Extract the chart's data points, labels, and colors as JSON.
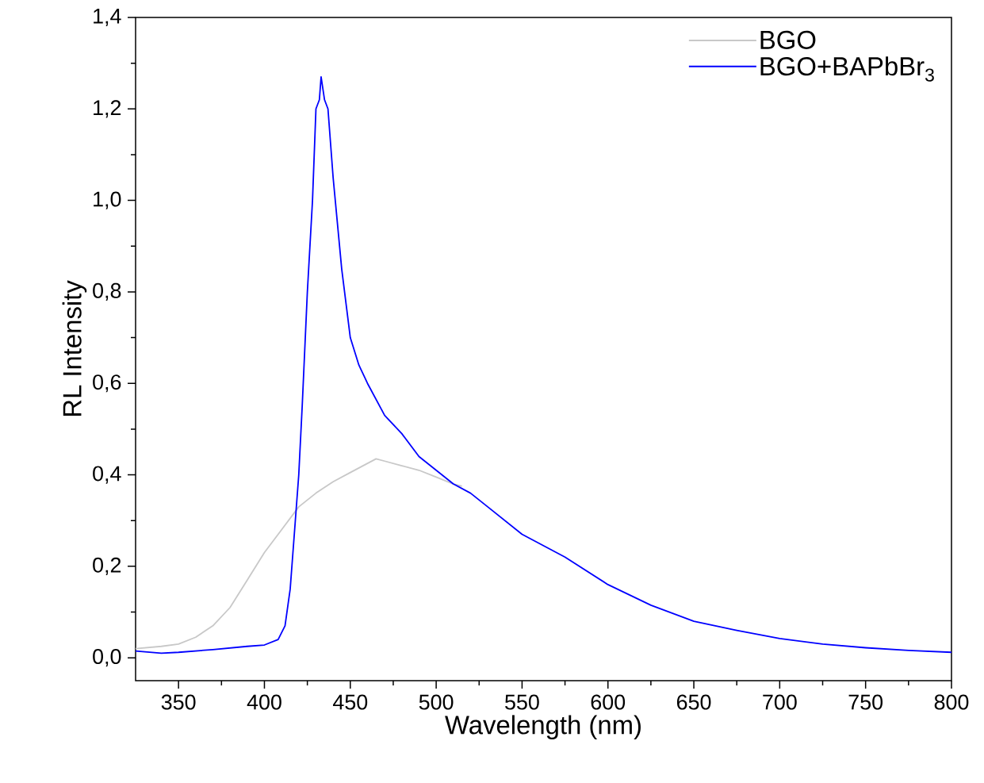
{
  "chart_data": {
    "type": "line",
    "xlabel": "Wavelength (nm)",
    "ylabel": "RL Intensity",
    "xlim": [
      325,
      800
    ],
    "ylim": [
      -0.05,
      1.4
    ],
    "xticks": [
      350,
      400,
      450,
      500,
      550,
      600,
      650,
      700,
      750,
      800
    ],
    "yticks": [
      {
        "value": 0,
        "label": "0,0"
      },
      {
        "value": 0.2,
        "label": "0,2"
      },
      {
        "value": 0.4,
        "label": "0,4"
      },
      {
        "value": 0.6,
        "label": "0,6"
      },
      {
        "value": 0.8,
        "label": "0,8"
      },
      {
        "value": 1.0,
        "label": "1,0"
      },
      {
        "value": 1.2,
        "label": "1,2"
      },
      {
        "value": 1.4,
        "label": "1,4"
      }
    ],
    "legend": "top right",
    "grid": false,
    "series": [
      {
        "name": "BGO",
        "color": "#c8c8c8",
        "x": [
          325,
          340,
          350,
          360,
          370,
          380,
          390,
          400,
          410,
          420,
          430,
          440,
          450,
          460,
          465,
          470,
          480,
          490,
          500,
          510,
          515
        ],
        "values": [
          0.02,
          0.025,
          0.03,
          0.045,
          0.07,
          0.11,
          0.17,
          0.23,
          0.28,
          0.33,
          0.36,
          0.385,
          0.405,
          0.425,
          0.435,
          0.43,
          0.42,
          0.41,
          0.395,
          0.38,
          0.375
        ]
      },
      {
        "name": "BGO+BAPbBr$_{3}$",
        "color": "#0000ff",
        "x": [
          325,
          340,
          350,
          370,
          390,
          400,
          408,
          412,
          415,
          418,
          420,
          422,
          425,
          428,
          430,
          432,
          433,
          435,
          437,
          440,
          445,
          450,
          455,
          460,
          470,
          480,
          490,
          500,
          510,
          520,
          530,
          550,
          575,
          600,
          625,
          650,
          675,
          700,
          725,
          750,
          775,
          800
        ],
        "values": [
          0.015,
          0.01,
          0.012,
          0.018,
          0.025,
          0.028,
          0.04,
          0.07,
          0.15,
          0.3,
          0.4,
          0.55,
          0.8,
          1.0,
          1.2,
          1.22,
          1.27,
          1.22,
          1.2,
          1.05,
          0.85,
          0.7,
          0.64,
          0.6,
          0.53,
          0.49,
          0.44,
          0.41,
          0.38,
          0.36,
          0.33,
          0.27,
          0.22,
          0.16,
          0.115,
          0.08,
          0.06,
          0.042,
          0.03,
          0.022,
          0.016,
          0.012
        ]
      }
    ]
  }
}
